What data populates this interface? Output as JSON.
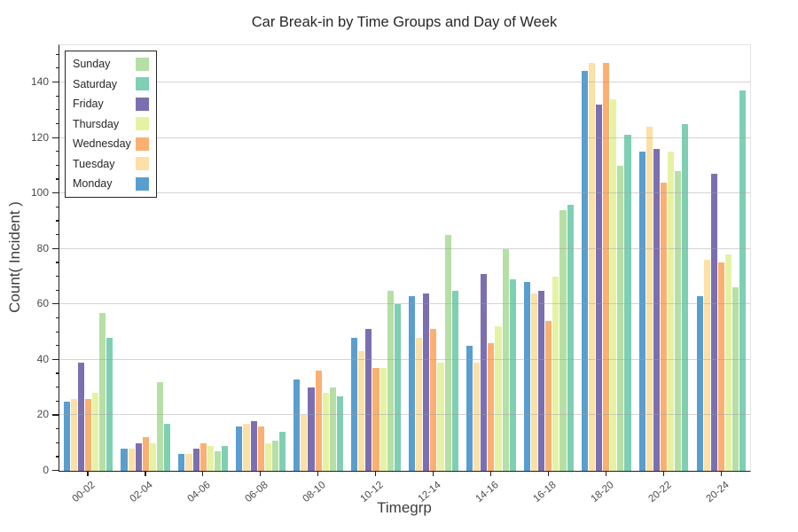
{
  "title": "Car Break-in by Time Groups and Day of Week",
  "xlabel": "Timegrp",
  "ylabel": "Count( Incident )",
  "legend": {
    "order": [
      "Sunday",
      "Saturday",
      "Friday",
      "Thursday",
      "Wednesday",
      "Tuesday",
      "Monday"
    ],
    "position": "top-left",
    "swatch_side": "right"
  },
  "chart_data": {
    "type": "bar",
    "title": "Car Break-in by Time Groups and Day of Week",
    "xlabel": "Timegrp",
    "ylabel": "Count( Incident )",
    "categories": [
      "00-02",
      "02-04",
      "04-06",
      "06-08",
      "08-10",
      "10-12",
      "12-14",
      "14-16",
      "16-18",
      "18-20",
      "20-22",
      "20-24"
    ],
    "series": [
      {
        "name": "Monday",
        "color": "#5A9ECF",
        "values": [
          25,
          8,
          6,
          16,
          33,
          48,
          63,
          45,
          68,
          144,
          115,
          63
        ]
      },
      {
        "name": "Tuesday",
        "color": "#FDE0A6",
        "values": [
          26,
          8,
          6,
          17,
          20,
          43,
          48,
          39,
          64,
          147,
          124,
          76
        ]
      },
      {
        "name": "Friday",
        "color": "#7C6FB0",
        "values": [
          39,
          10,
          8,
          18,
          30,
          51,
          64,
          71,
          65,
          132,
          116,
          107
        ]
      },
      {
        "name": "Wednesday",
        "color": "#FBB071",
        "values": [
          26,
          12,
          10,
          16,
          36,
          37,
          51,
          46,
          54,
          147,
          104,
          75
        ]
      },
      {
        "name": "Thursday",
        "color": "#E6F2A3",
        "values": [
          28,
          10,
          9,
          10,
          28,
          37,
          39,
          52,
          70,
          134,
          115,
          78
        ]
      },
      {
        "name": "Sunday",
        "color": "#B6DFA6",
        "values": [
          57,
          32,
          7,
          11,
          30,
          65,
          85,
          80,
          94,
          110,
          108,
          66
        ]
      },
      {
        "name": "Saturday",
        "color": "#7FCFB3",
        "values": [
          48,
          17,
          9,
          14,
          27,
          60,
          65,
          69,
          96,
          121,
          125,
          137
        ]
      }
    ],
    "yticks": [
      0,
      20,
      40,
      60,
      80,
      100,
      120,
      140
    ],
    "y_minor_tick_step": 5,
    "y_minor_tick_max": 150,
    "ylim": [
      0,
      153.4
    ],
    "grid": "horizontal",
    "legend_position": "top-left"
  }
}
